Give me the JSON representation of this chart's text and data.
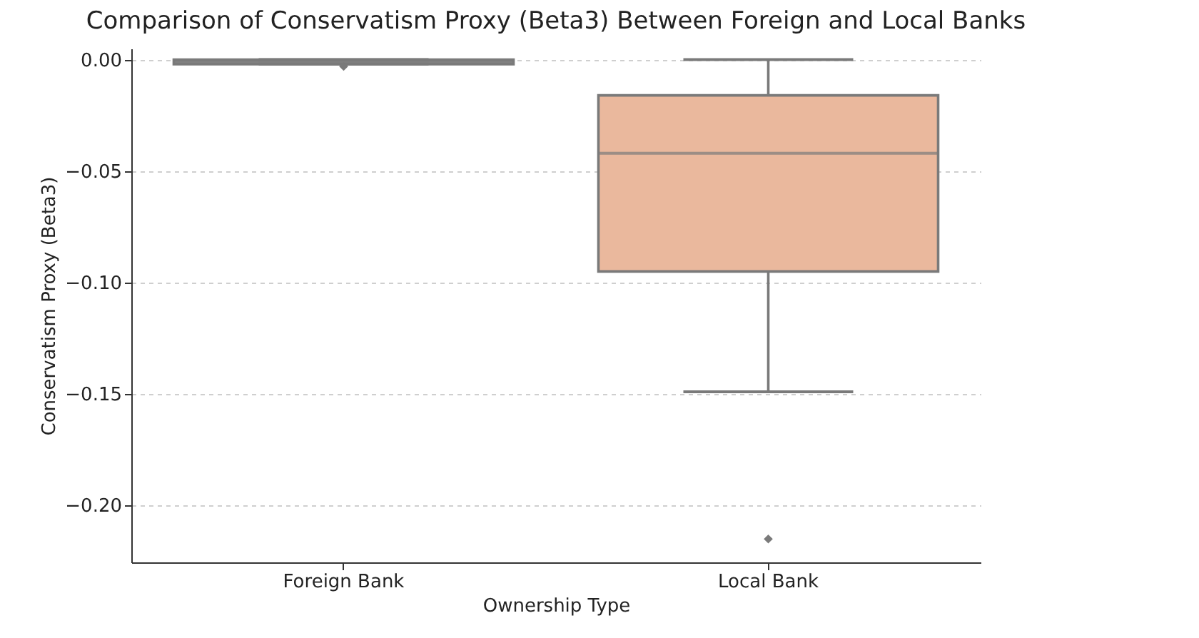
{
  "chart_data": {
    "type": "box",
    "title": "Comparison of Conservatism Proxy (Beta3) Between Foreign and Local Banks",
    "xlabel": "Ownership Type",
    "ylabel": "Conservatism Proxy (Beta3)",
    "categories": [
      "Foreign Bank",
      "Local Bank"
    ],
    "boxes": [
      {
        "low": -0.002,
        "q1": -0.002,
        "median": -0.001,
        "q3": 0,
        "high": 0,
        "outliers": [
          -0.003
        ]
      },
      {
        "low": -0.149,
        "q1": -0.095,
        "median": -0.042,
        "q3": -0.016,
        "high": 0,
        "outliers": [
          -0.215
        ]
      }
    ],
    "colors": [
      "#8c8c8c",
      "#eab89d"
    ],
    "ylim": [
      -0.2255,
      0.005
    ],
    "yticks": [
      {
        "value": 0,
        "label": "0.00"
      },
      {
        "value": -0.05,
        "label": "−0.05"
      },
      {
        "value": -0.1,
        "label": "−0.10"
      },
      {
        "value": -0.15,
        "label": "−0.15"
      },
      {
        "value": -0.2,
        "label": "−0.20"
      }
    ],
    "grid": "y"
  }
}
